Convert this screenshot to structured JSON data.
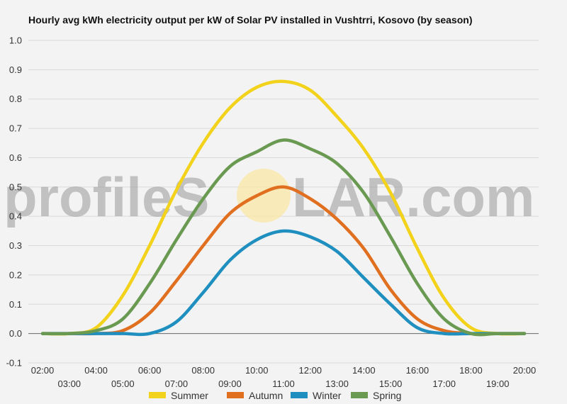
{
  "watermark": {
    "text_left": "profileS",
    "text_right": "LAR.com"
  },
  "chart_data": {
    "type": "line",
    "title": "Hourly avg kWh electricity output per kW of Solar PV installed in Vushtrri, Kosovo (by season)",
    "xlabel": "",
    "ylabel": "",
    "ylim": [
      -0.1,
      1.0
    ],
    "yticks": [
      "1.0",
      "0.9",
      "0.8",
      "0.7",
      "0.6",
      "0.5",
      "0.4",
      "0.3",
      "0.2",
      "0.1",
      "0.0",
      "-0.1"
    ],
    "ytick_values": [
      1.0,
      0.9,
      0.8,
      0.7,
      0.6,
      0.5,
      0.4,
      0.3,
      0.2,
      0.1,
      0.0,
      -0.1
    ],
    "x": [
      "02:00",
      "03:00",
      "04:00",
      "05:00",
      "06:00",
      "07:00",
      "08:00",
      "09:00",
      "10:00",
      "11:00",
      "12:00",
      "13:00",
      "14:00",
      "15:00",
      "16:00",
      "17:00",
      "18:00",
      "19:00",
      "20:00"
    ],
    "grid": true,
    "legend_position": "bottom",
    "series": [
      {
        "name": "Summer",
        "color": "#f2d21b",
        "values": [
          0.0,
          0.0,
          0.02,
          0.13,
          0.3,
          0.49,
          0.65,
          0.77,
          0.84,
          0.86,
          0.83,
          0.74,
          0.63,
          0.48,
          0.29,
          0.12,
          0.02,
          0.0,
          0.0
        ]
      },
      {
        "name": "Autumn",
        "color": "#e06f1f",
        "values": [
          0.0,
          0.0,
          0.0,
          0.01,
          0.07,
          0.18,
          0.3,
          0.41,
          0.47,
          0.5,
          0.46,
          0.39,
          0.29,
          0.15,
          0.05,
          0.01,
          0.0,
          0.0,
          0.0
        ]
      },
      {
        "name": "Winter",
        "color": "#1f8fbf",
        "values": [
          0.0,
          0.0,
          0.0,
          0.0,
          0.0,
          0.04,
          0.14,
          0.25,
          0.32,
          0.35,
          0.33,
          0.28,
          0.19,
          0.1,
          0.02,
          0.0,
          0.0,
          0.0,
          0.0
        ]
      },
      {
        "name": "Spring",
        "color": "#6a9a52",
        "values": [
          0.0,
          0.0,
          0.01,
          0.05,
          0.17,
          0.32,
          0.46,
          0.57,
          0.62,
          0.66,
          0.63,
          0.58,
          0.48,
          0.33,
          0.17,
          0.05,
          0.0,
          0.0,
          0.0
        ]
      }
    ]
  }
}
